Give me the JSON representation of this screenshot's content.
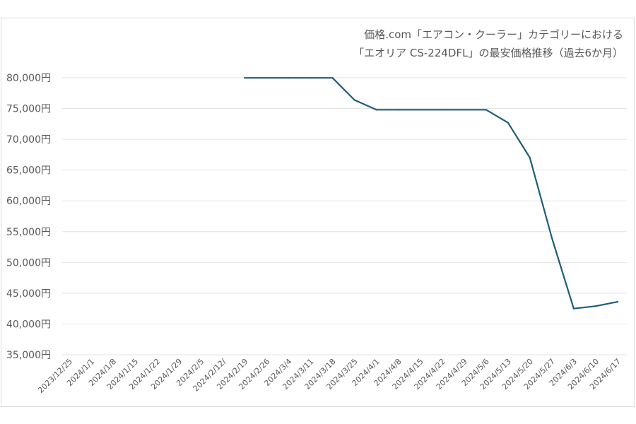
{
  "chart_data": {
    "type": "line",
    "title_line1": "価格.com「エアコン・クーラー」カテゴリーにおける",
    "title_line2": "「エオリア CS-224DFL」の最安価格推移（過去6か月）",
    "xlabel": "",
    "ylabel": "",
    "ylim": [
      35000,
      80000
    ],
    "y_ticks": [
      "35,000円",
      "40,000円",
      "45,000円",
      "50,000円",
      "55,000円",
      "60,000円",
      "65,000円",
      "70,000円",
      "75,000円",
      "80,000円"
    ],
    "categories": [
      "2023/12/25",
      "2024/1/1",
      "2024/1/8",
      "2024/1/15",
      "2024/1/22",
      "2024/1/29",
      "2024/2/5",
      "2024/2/12/",
      "2024/2/19",
      "2024/2/26",
      "2024/3/4",
      "2024/3/11",
      "2024/3/18",
      "2024/3/25",
      "2024/4/1",
      "2024/4/8",
      "2024/4/15",
      "2024/4/22",
      "2024/4/29",
      "2024/5/6",
      "2024/5/13",
      "2024/5/20",
      "2024/5/27",
      "2024/6/3",
      "2024/6/10",
      "2024/6/17"
    ],
    "values": [
      null,
      null,
      null,
      null,
      null,
      null,
      null,
      null,
      79980,
      79980,
      79980,
      79980,
      79980,
      76400,
      74800,
      74800,
      74800,
      74800,
      74800,
      74800,
      72700,
      67000,
      54000,
      42500,
      42900,
      43600
    ],
    "line_color": "#1f5c7a",
    "grid": true
  }
}
